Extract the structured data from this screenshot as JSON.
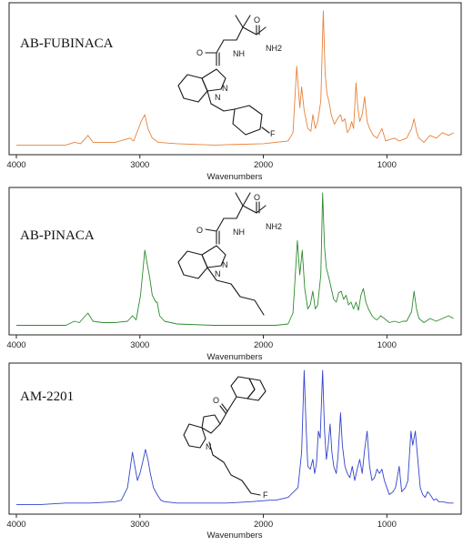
{
  "chart_data": [
    {
      "type": "line",
      "title": "AB-FUBINACA",
      "xlabel": "Wavenumbers",
      "ylabel": "",
      "xlim": [
        4000,
        450
      ],
      "x_reversed": true,
      "xticks": [
        4000,
        3000,
        2000,
        1000
      ],
      "ylim": [
        0,
        1
      ],
      "grid": false,
      "series": [
        {
          "color": "#e8823a",
          "points": [
            [
              4000,
              0.03
            ],
            [
              3600,
              0.03
            ],
            [
              3530,
              0.05
            ],
            [
              3480,
              0.04
            ],
            [
              3420,
              0.1
            ],
            [
              3380,
              0.05
            ],
            [
              3300,
              0.05
            ],
            [
              3200,
              0.05
            ],
            [
              3080,
              0.08
            ],
            [
              3050,
              0.06
            ],
            [
              2990,
              0.2
            ],
            [
              2960,
              0.25
            ],
            [
              2935,
              0.15
            ],
            [
              2900,
              0.08
            ],
            [
              2850,
              0.05
            ],
            [
              2700,
              0.04
            ],
            [
              2400,
              0.03
            ],
            [
              2000,
              0.04
            ],
            [
              1900,
              0.05
            ],
            [
              1800,
              0.06
            ],
            [
              1760,
              0.12
            ],
            [
              1730,
              0.6
            ],
            [
              1705,
              0.3
            ],
            [
              1690,
              0.45
            ],
            [
              1670,
              0.28
            ],
            [
              1640,
              0.15
            ],
            [
              1615,
              0.13
            ],
            [
              1600,
              0.25
            ],
            [
              1580,
              0.15
            ],
            [
              1560,
              0.2
            ],
            [
              1535,
              0.35
            ],
            [
              1515,
              1.0
            ],
            [
              1500,
              0.55
            ],
            [
              1485,
              0.4
            ],
            [
              1470,
              0.35
            ],
            [
              1450,
              0.25
            ],
            [
              1425,
              0.18
            ],
            [
              1400,
              0.22
            ],
            [
              1375,
              0.25
            ],
            [
              1360,
              0.2
            ],
            [
              1340,
              0.22
            ],
            [
              1320,
              0.12
            ],
            [
              1300,
              0.15
            ],
            [
              1285,
              0.2
            ],
            [
              1270,
              0.15
            ],
            [
              1250,
              0.48
            ],
            [
              1235,
              0.3
            ],
            [
              1220,
              0.2
            ],
            [
              1200,
              0.25
            ],
            [
              1180,
              0.38
            ],
            [
              1160,
              0.2
            ],
            [
              1140,
              0.15
            ],
            [
              1110,
              0.1
            ],
            [
              1080,
              0.08
            ],
            [
              1040,
              0.15
            ],
            [
              1010,
              0.06
            ],
            [
              980,
              0.07
            ],
            [
              940,
              0.08
            ],
            [
              900,
              0.06
            ],
            [
              870,
              0.07
            ],
            [
              840,
              0.08
            ],
            [
              800,
              0.15
            ],
            [
              780,
              0.22
            ],
            [
              760,
              0.13
            ],
            [
              740,
              0.08
            ],
            [
              700,
              0.05
            ],
            [
              650,
              0.1
            ],
            [
              600,
              0.08
            ],
            [
              550,
              0.12
            ],
            [
              500,
              0.1
            ],
            [
              460,
              0.12
            ]
          ]
        }
      ]
    },
    {
      "type": "line",
      "title": "AB-PINACA",
      "xlabel": "Wavenumbers",
      "ylabel": "",
      "xlim": [
        4000,
        450
      ],
      "x_reversed": true,
      "xticks": [
        4000,
        3000,
        2000,
        1000
      ],
      "ylim": [
        0,
        1
      ],
      "grid": false,
      "series": [
        {
          "color": "#2e8b2e",
          "points": [
            [
              4000,
              0.03
            ],
            [
              3600,
              0.03
            ],
            [
              3530,
              0.06
            ],
            [
              3490,
              0.05
            ],
            [
              3420,
              0.12
            ],
            [
              3380,
              0.06
            ],
            [
              3300,
              0.05
            ],
            [
              3200,
              0.05
            ],
            [
              3100,
              0.06
            ],
            [
              3060,
              0.1
            ],
            [
              3030,
              0.07
            ],
            [
              2995,
              0.25
            ],
            [
              2960,
              0.58
            ],
            [
              2935,
              0.45
            ],
            [
              2920,
              0.38
            ],
            [
              2900,
              0.25
            ],
            [
              2870,
              0.2
            ],
            [
              2860,
              0.2
            ],
            [
              2840,
              0.1
            ],
            [
              2800,
              0.06
            ],
            [
              2700,
              0.04
            ],
            [
              2400,
              0.03
            ],
            [
              2000,
              0.03
            ],
            [
              1900,
              0.03
            ],
            [
              1800,
              0.04
            ],
            [
              1760,
              0.12
            ],
            [
              1725,
              0.65
            ],
            [
              1705,
              0.4
            ],
            [
              1685,
              0.58
            ],
            [
              1665,
              0.3
            ],
            [
              1640,
              0.15
            ],
            [
              1620,
              0.18
            ],
            [
              1600,
              0.28
            ],
            [
              1580,
              0.15
            ],
            [
              1560,
              0.18
            ],
            [
              1535,
              0.4
            ],
            [
              1520,
              1.0
            ],
            [
              1505,
              0.6
            ],
            [
              1490,
              0.45
            ],
            [
              1470,
              0.38
            ],
            [
              1450,
              0.3
            ],
            [
              1430,
              0.22
            ],
            [
              1410,
              0.2
            ],
            [
              1390,
              0.27
            ],
            [
              1370,
              0.28
            ],
            [
              1350,
              0.22
            ],
            [
              1330,
              0.25
            ],
            [
              1310,
              0.18
            ],
            [
              1290,
              0.2
            ],
            [
              1270,
              0.15
            ],
            [
              1250,
              0.2
            ],
            [
              1230,
              0.14
            ],
            [
              1210,
              0.25
            ],
            [
              1190,
              0.3
            ],
            [
              1170,
              0.2
            ],
            [
              1150,
              0.15
            ],
            [
              1120,
              0.1
            ],
            [
              1100,
              0.08
            ],
            [
              1080,
              0.07
            ],
            [
              1050,
              0.1
            ],
            [
              1020,
              0.08
            ],
            [
              980,
              0.05
            ],
            [
              940,
              0.06
            ],
            [
              900,
              0.05
            ],
            [
              870,
              0.06
            ],
            [
              840,
              0.06
            ],
            [
              800,
              0.13
            ],
            [
              780,
              0.28
            ],
            [
              760,
              0.15
            ],
            [
              740,
              0.08
            ],
            [
              700,
              0.05
            ],
            [
              650,
              0.08
            ],
            [
              600,
              0.06
            ],
            [
              550,
              0.08
            ],
            [
              500,
              0.1
            ],
            [
              460,
              0.08
            ]
          ]
        }
      ]
    },
    {
      "type": "line",
      "title": "AM-2201",
      "xlabel": "Wavenumbers",
      "ylabel": "",
      "xlim": [
        4000,
        450
      ],
      "x_reversed": true,
      "xticks": [
        4000,
        3000,
        2000,
        1000
      ],
      "ylim": [
        0,
        1
      ],
      "grid": false,
      "series": [
        {
          "color": "#3344cc",
          "points": [
            [
              4000,
              0.03
            ],
            [
              3800,
              0.03
            ],
            [
              3600,
              0.04
            ],
            [
              3400,
              0.04
            ],
            [
              3200,
              0.05
            ],
            [
              3150,
              0.06
            ],
            [
              3100,
              0.15
            ],
            [
              3060,
              0.4
            ],
            [
              3040,
              0.3
            ],
            [
              3020,
              0.2
            ],
            [
              3000,
              0.25
            ],
            [
              2980,
              0.32
            ],
            [
              2955,
              0.42
            ],
            [
              2935,
              0.35
            ],
            [
              2915,
              0.25
            ],
            [
              2890,
              0.15
            ],
            [
              2860,
              0.1
            ],
            [
              2830,
              0.06
            ],
            [
              2800,
              0.05
            ],
            [
              2700,
              0.04
            ],
            [
              2500,
              0.04
            ],
            [
              2300,
              0.04
            ],
            [
              2100,
              0.05
            ],
            [
              1950,
              0.06
            ],
            [
              1900,
              0.06
            ],
            [
              1800,
              0.08
            ],
            [
              1720,
              0.15
            ],
            [
              1690,
              0.4
            ],
            [
              1670,
              0.98
            ],
            [
              1655,
              0.6
            ],
            [
              1640,
              0.3
            ],
            [
              1620,
              0.28
            ],
            [
              1600,
              0.35
            ],
            [
              1585,
              0.25
            ],
            [
              1570,
              0.32
            ],
            [
              1555,
              0.55
            ],
            [
              1540,
              0.5
            ],
            [
              1520,
              0.98
            ],
            [
              1505,
              0.55
            ],
            [
              1490,
              0.35
            ],
            [
              1475,
              0.45
            ],
            [
              1460,
              0.6
            ],
            [
              1445,
              0.4
            ],
            [
              1430,
              0.3
            ],
            [
              1410,
              0.25
            ],
            [
              1395,
              0.38
            ],
            [
              1375,
              0.68
            ],
            [
              1360,
              0.45
            ],
            [
              1340,
              0.3
            ],
            [
              1320,
              0.25
            ],
            [
              1300,
              0.22
            ],
            [
              1280,
              0.3
            ],
            [
              1260,
              0.2
            ],
            [
              1240,
              0.28
            ],
            [
              1220,
              0.35
            ],
            [
              1200,
              0.25
            ],
            [
              1180,
              0.42
            ],
            [
              1160,
              0.55
            ],
            [
              1140,
              0.3
            ],
            [
              1120,
              0.2
            ],
            [
              1100,
              0.22
            ],
            [
              1080,
              0.28
            ],
            [
              1060,
              0.25
            ],
            [
              1040,
              0.28
            ],
            [
              1020,
              0.2
            ],
            [
              1000,
              0.15
            ],
            [
              980,
              0.1
            ],
            [
              950,
              0.12
            ],
            [
              930,
              0.15
            ],
            [
              900,
              0.3
            ],
            [
              880,
              0.12
            ],
            [
              850,
              0.15
            ],
            [
              830,
              0.2
            ],
            [
              805,
              0.55
            ],
            [
              790,
              0.45
            ],
            [
              770,
              0.55
            ],
            [
              750,
              0.35
            ],
            [
              730,
              0.15
            ],
            [
              710,
              0.1
            ],
            [
              690,
              0.08
            ],
            [
              670,
              0.12
            ],
            [
              650,
              0.1
            ],
            [
              620,
              0.06
            ],
            [
              600,
              0.07
            ],
            [
              580,
              0.05
            ],
            [
              550,
              0.05
            ],
            [
              500,
              0.04
            ],
            [
              460,
              0.04
            ]
          ]
        }
      ]
    }
  ],
  "structures": {
    "nh": "NH",
    "nh2": "NH2",
    "o": "O",
    "n": "N",
    "f": "F"
  }
}
